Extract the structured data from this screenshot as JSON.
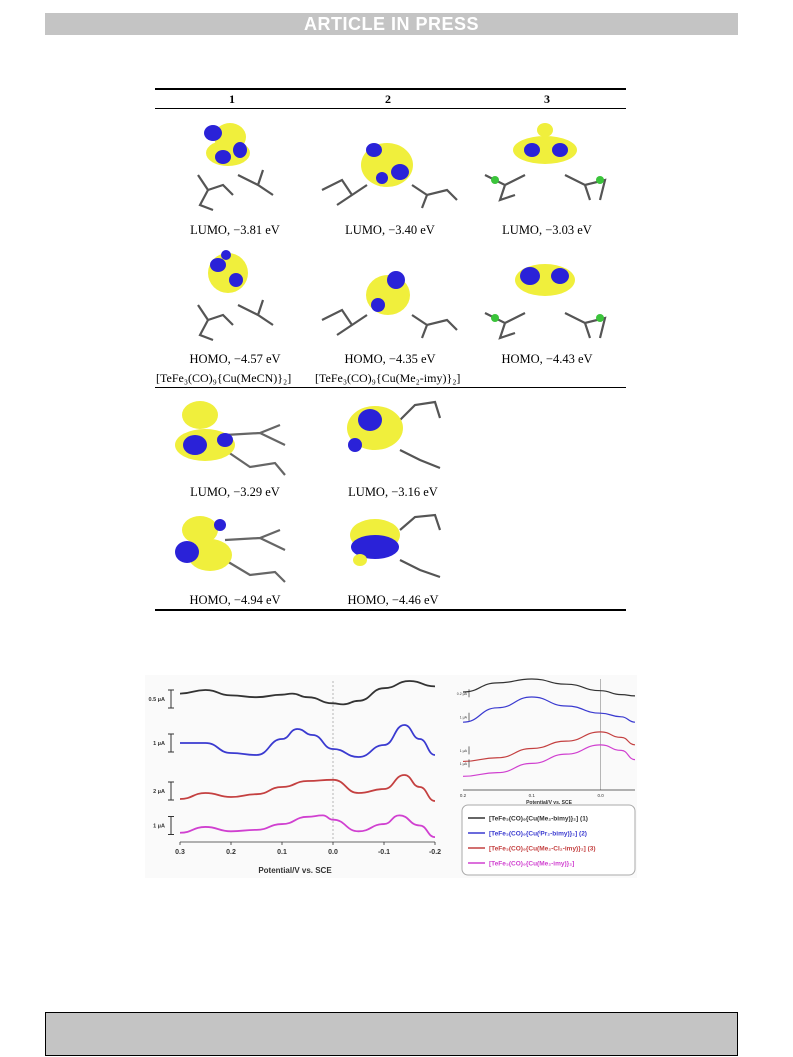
{
  "header": {
    "banner": "ARTICLE IN PRESS"
  },
  "table": {
    "columns": [
      "1",
      "2",
      "3"
    ],
    "row1_lumo": [
      "LUMO, −3.81 eV",
      "LUMO, −3.40 eV",
      "LUMO, −3.03 eV"
    ],
    "row1_homo": [
      "HOMO, −4.57 eV",
      "HOMO, −4.35 eV",
      "HOMO, −4.43 eV"
    ],
    "model_labels": [
      "[TeFe₃(CO)₉{Cu(MeCN)}₂]",
      "[TeFe₃(CO)₉{Cu(Me₂-imy)}₂]"
    ],
    "row2_lumo": [
      "LUMO, −3.29 eV",
      "LUMO, −3.16 eV"
    ],
    "row2_homo": [
      "HOMO, −4.94 eV",
      "HOMO, −4.46 eV"
    ]
  },
  "chart_data": {
    "type": "line",
    "xlabel": "Potential/V vs. SCE",
    "x_ticks": [
      "0.3",
      "0.2",
      "0.1",
      "0.0",
      "-0.1",
      "-0.2"
    ],
    "xlim": [
      0.3,
      -0.2
    ],
    "scale_bars": [
      "0.5 μA",
      "1 μA",
      "2 μA",
      "1 μA"
    ],
    "inset_x_ticks": [
      "0.2",
      "0.1",
      "0.0"
    ],
    "inset_xlabel": "Potential/V vs. SCE",
    "inset_scale_bars": [
      "0.2 μA",
      "1 μA",
      "1 μA",
      "1 μA"
    ],
    "colors": [
      "#333333",
      "#3a3ad0",
      "#c44040",
      "#d040d0"
    ],
    "series": [
      {
        "name": "[TeFe3(CO)9{Cu(Me2-bimy)}2] (1)",
        "x": [
          0.3,
          0.25,
          0.2,
          0.15,
          0.1,
          0.08,
          0.05,
          0.0,
          -0.02,
          -0.05,
          -0.1,
          -0.15,
          -0.2
        ],
        "y": [
          0.65,
          0.75,
          0.6,
          0.55,
          0.62,
          0.65,
          0.55,
          0.38,
          0.35,
          0.45,
          0.8,
          1.0,
          0.85
        ]
      },
      {
        "name": "[TeFe3(CO)9{Cu(iPr2-bimy)}2] (2)",
        "x": [
          0.3,
          0.25,
          0.2,
          0.15,
          0.1,
          0.07,
          0.04,
          0.0,
          -0.05,
          -0.1,
          -0.14,
          -0.17,
          -0.2
        ],
        "y": [
          0.5,
          0.5,
          0.25,
          0.2,
          0.6,
          0.85,
          0.7,
          0.35,
          0.15,
          0.45,
          0.95,
          0.6,
          0.2
        ]
      },
      {
        "name": "[TeFe3(CO)9{Cu(Me2-Cl2-imy)}2] (3)",
        "x": [
          0.3,
          0.25,
          0.2,
          0.15,
          0.1,
          0.05,
          0.0,
          -0.05,
          -0.1,
          -0.14,
          -0.17,
          -0.2
        ],
        "y": [
          0.3,
          0.45,
          0.35,
          0.42,
          0.6,
          0.75,
          0.78,
          0.45,
          0.55,
          0.9,
          0.6,
          0.25
        ]
      },
      {
        "name": "[TeFe3(CO)9{Cu(Me2-imy)}2]",
        "x": [
          0.3,
          0.25,
          0.2,
          0.15,
          0.1,
          0.05,
          0.02,
          0.0,
          -0.05,
          -0.1,
          -0.13,
          -0.17,
          -0.2
        ],
        "y": [
          0.25,
          0.45,
          0.3,
          0.35,
          0.55,
          0.8,
          0.85,
          0.7,
          0.3,
          0.55,
          0.85,
          0.5,
          0.1
        ]
      }
    ],
    "legend": [
      "[TeFe₃(CO)₉{Cu(Me₂-bimy)}₂] (1)",
      "[TeFe₃(CO)₉{Cu(ⁱPr₂-bimy)}₂] (2)",
      "[TeFe₃(CO)₉{Cu(Me₂-Cl₂-imy)}₂] (3)",
      "[TeFe₃(CO)₉{Cu(Me₂-imy)}₂]"
    ]
  }
}
